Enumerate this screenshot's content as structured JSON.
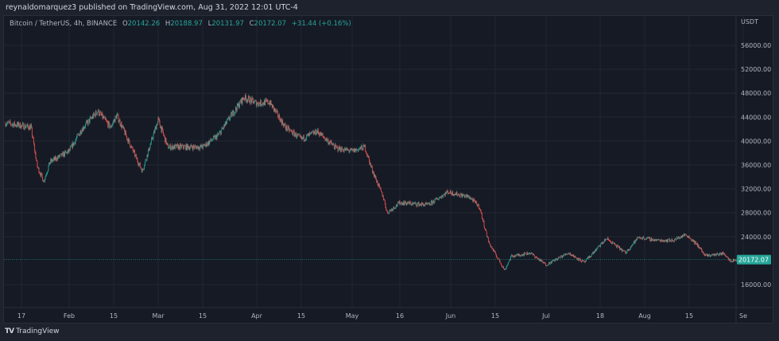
{
  "header": {
    "published": "reynaldomarquez3 published on TradingView.com, Aug 31, 2022 12:01 UTC-4"
  },
  "legend": {
    "symbol": "Bitcoin / TetherUS, 4h, BINANCE",
    "o_label": "O",
    "o": "20142.26",
    "h_label": "H",
    "h": "20188.97",
    "l_label": "L",
    "l": "20131.97",
    "c_label": "C",
    "c": "20172.07",
    "change": "+31.44 (+0.16%)"
  },
  "footer": {
    "brand": "TradingView",
    "logo": "TV"
  },
  "colors": {
    "up": "#26a69a",
    "down": "#ef5350",
    "background": "#161a25",
    "grid": "#232733"
  },
  "chart_data": {
    "type": "candlestick",
    "interval": "4h",
    "currency_label": "USDT",
    "y_ticks": [
      "56000.00",
      "52000.00",
      "48000.00",
      "44000.00",
      "40000.00",
      "36000.00",
      "32000.00",
      "28000.00",
      "24000.00",
      "16000.00"
    ],
    "ylim": [
      14000,
      59000
    ],
    "x_ticks": [
      "17",
      "Feb",
      "15",
      "Mar",
      "15",
      "Apr",
      "15",
      "May",
      "16",
      "Jun",
      "15",
      "Jul",
      "18",
      "Aug",
      "15",
      "Se"
    ],
    "x_tick_dates": [
      "2022-01-17",
      "2022-02-01",
      "2022-02-15",
      "2022-03-01",
      "2022-03-15",
      "2022-04-01",
      "2022-04-15",
      "2022-05-01",
      "2022-05-16",
      "2022-06-01",
      "2022-06-15",
      "2022-07-01",
      "2022-07-18",
      "2022-08-01",
      "2022-08-15",
      "2022-09-01"
    ],
    "last_price": "20172.07",
    "grid": true,
    "approx_close_path": [
      [
        "2022-01-12",
        43000
      ],
      [
        "2022-01-20",
        42300
      ],
      [
        "2022-01-22",
        35700
      ],
      [
        "2022-01-24",
        33300
      ],
      [
        "2022-01-26",
        36500
      ],
      [
        "2022-02-01",
        38300
      ],
      [
        "2022-02-05",
        42000
      ],
      [
        "2022-02-10",
        45000
      ],
      [
        "2022-02-14",
        42300
      ],
      [
        "2022-02-16",
        44300
      ],
      [
        "2022-02-20",
        39600
      ],
      [
        "2022-02-24",
        35000
      ],
      [
        "2022-03-01",
        43600
      ],
      [
        "2022-03-04",
        39000
      ],
      [
        "2022-03-10",
        39000
      ],
      [
        "2022-03-15",
        39000
      ],
      [
        "2022-03-20",
        41000
      ],
      [
        "2022-03-24",
        44300
      ],
      [
        "2022-03-28",
        47300
      ],
      [
        "2022-04-01",
        46300
      ],
      [
        "2022-04-05",
        46500
      ],
      [
        "2022-04-10",
        42300
      ],
      [
        "2022-04-15",
        40300
      ],
      [
        "2022-04-20",
        41600
      ],
      [
        "2022-04-26",
        38800
      ],
      [
        "2022-05-01",
        38300
      ],
      [
        "2022-05-05",
        39000
      ],
      [
        "2022-05-07",
        35600
      ],
      [
        "2022-05-11",
        30300
      ],
      [
        "2022-05-12",
        28000
      ],
      [
        "2022-05-16",
        29700
      ],
      [
        "2022-05-25",
        29300
      ],
      [
        "2022-05-31",
        31500
      ],
      [
        "2022-06-07",
        30600
      ],
      [
        "2022-06-10",
        29000
      ],
      [
        "2022-06-13",
        23000
      ],
      [
        "2022-06-18",
        18400
      ],
      [
        "2022-06-20",
        20700
      ],
      [
        "2022-06-26",
        21300
      ],
      [
        "2022-07-01",
        19300
      ],
      [
        "2022-07-08",
        21300
      ],
      [
        "2022-07-13",
        19700
      ],
      [
        "2022-07-20",
        23700
      ],
      [
        "2022-07-26",
        21300
      ],
      [
        "2022-07-30",
        23900
      ],
      [
        "2022-08-05",
        23400
      ],
      [
        "2022-08-10",
        23400
      ],
      [
        "2022-08-14",
        24400
      ],
      [
        "2022-08-18",
        22400
      ],
      [
        "2022-08-20",
        20800
      ],
      [
        "2022-08-26",
        21200
      ],
      [
        "2022-08-28",
        20000
      ],
      [
        "2022-08-31",
        20172
      ]
    ]
  }
}
